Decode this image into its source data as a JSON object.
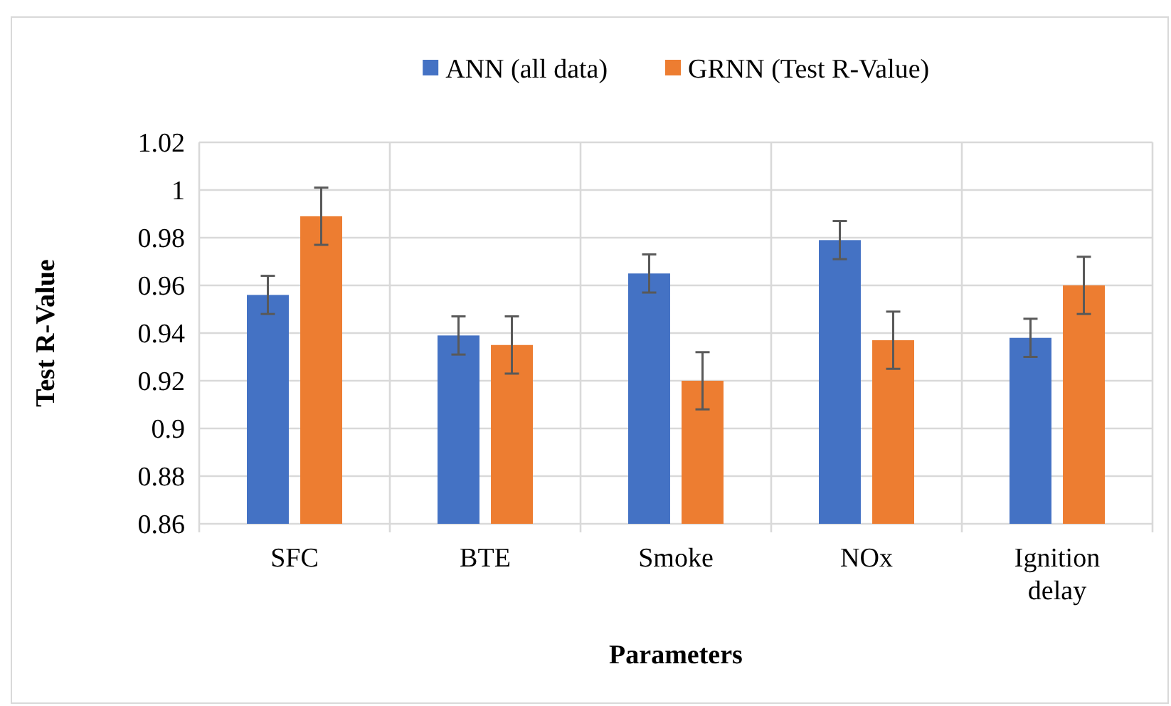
{
  "chart_data": {
    "type": "bar",
    "xlabel": "Parameters",
    "ylabel": "Test R-Value",
    "categories": [
      "SFC",
      "BTE",
      "Smoke",
      "NOx",
      "Ignition delay"
    ],
    "series": [
      {
        "name": "ANN (all data)",
        "color": "#4472c4",
        "values": [
          0.956,
          0.939,
          0.965,
          0.979,
          0.938
        ],
        "errors": [
          0.008,
          0.008,
          0.008,
          0.008,
          0.008
        ]
      },
      {
        "name": "GRNN (Test R-Value)",
        "color": "#ed7d31",
        "values": [
          0.989,
          0.935,
          0.92,
          0.937,
          0.96
        ],
        "errors": [
          0.012,
          0.012,
          0.012,
          0.012,
          0.012
        ]
      }
    ],
    "ylim": [
      0.86,
      1.02
    ],
    "yticks": [
      0.86,
      0.88,
      0.9,
      0.92,
      0.94,
      0.96,
      0.98,
      1,
      1.02
    ],
    "grid": true,
    "legend": "top"
  }
}
